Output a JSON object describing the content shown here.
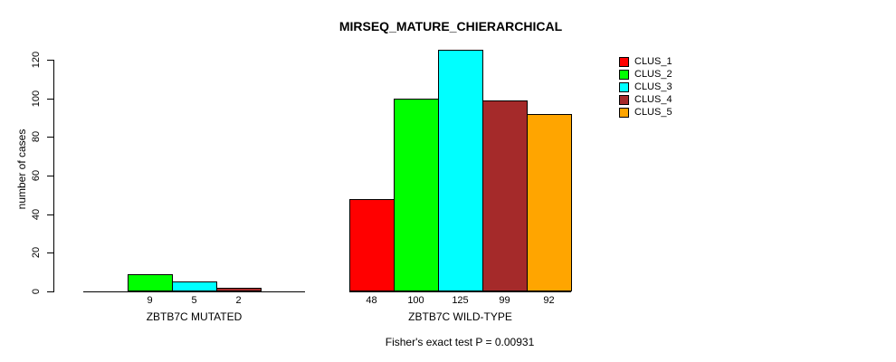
{
  "title": "MIRSEQ_MATURE_CHIERARCHICAL",
  "chart_data": {
    "type": "bar",
    "title": "MIRSEQ_MATURE_CHIERARCHICAL",
    "xlabel": "",
    "ylabel": "number of cases",
    "ylim": [
      0,
      120
    ],
    "yticks": [
      0,
      20,
      40,
      60,
      80,
      100,
      120
    ],
    "grid": false,
    "legend_position": "top-right",
    "legend": [
      {
        "label": "CLUS_1",
        "color": "#FF0000"
      },
      {
        "label": "CLUS_2",
        "color": "#00FF00"
      },
      {
        "label": "CLUS_3",
        "color": "#00FFFF"
      },
      {
        "label": "CLUS_4",
        "color": "#A52A2A"
      },
      {
        "label": "CLUS_5",
        "color": "#FFA500"
      }
    ],
    "groups": [
      {
        "label": "ZBTB7C MUTATED",
        "values": [
          0,
          9,
          5,
          2,
          0
        ],
        "bar_labels": [
          "",
          "9",
          "5",
          "2",
          ""
        ]
      },
      {
        "label": "ZBTB7C WILD-TYPE",
        "values": [
          48,
          100,
          125,
          99,
          92
        ],
        "bar_labels": [
          "48",
          "100",
          "125",
          "99",
          "92"
        ]
      }
    ],
    "annotation": "Fisher's exact test P = 0.00931"
  },
  "colors": {
    "background": "#FFFFFF",
    "axis": "#000000",
    "text": "#000000"
  }
}
